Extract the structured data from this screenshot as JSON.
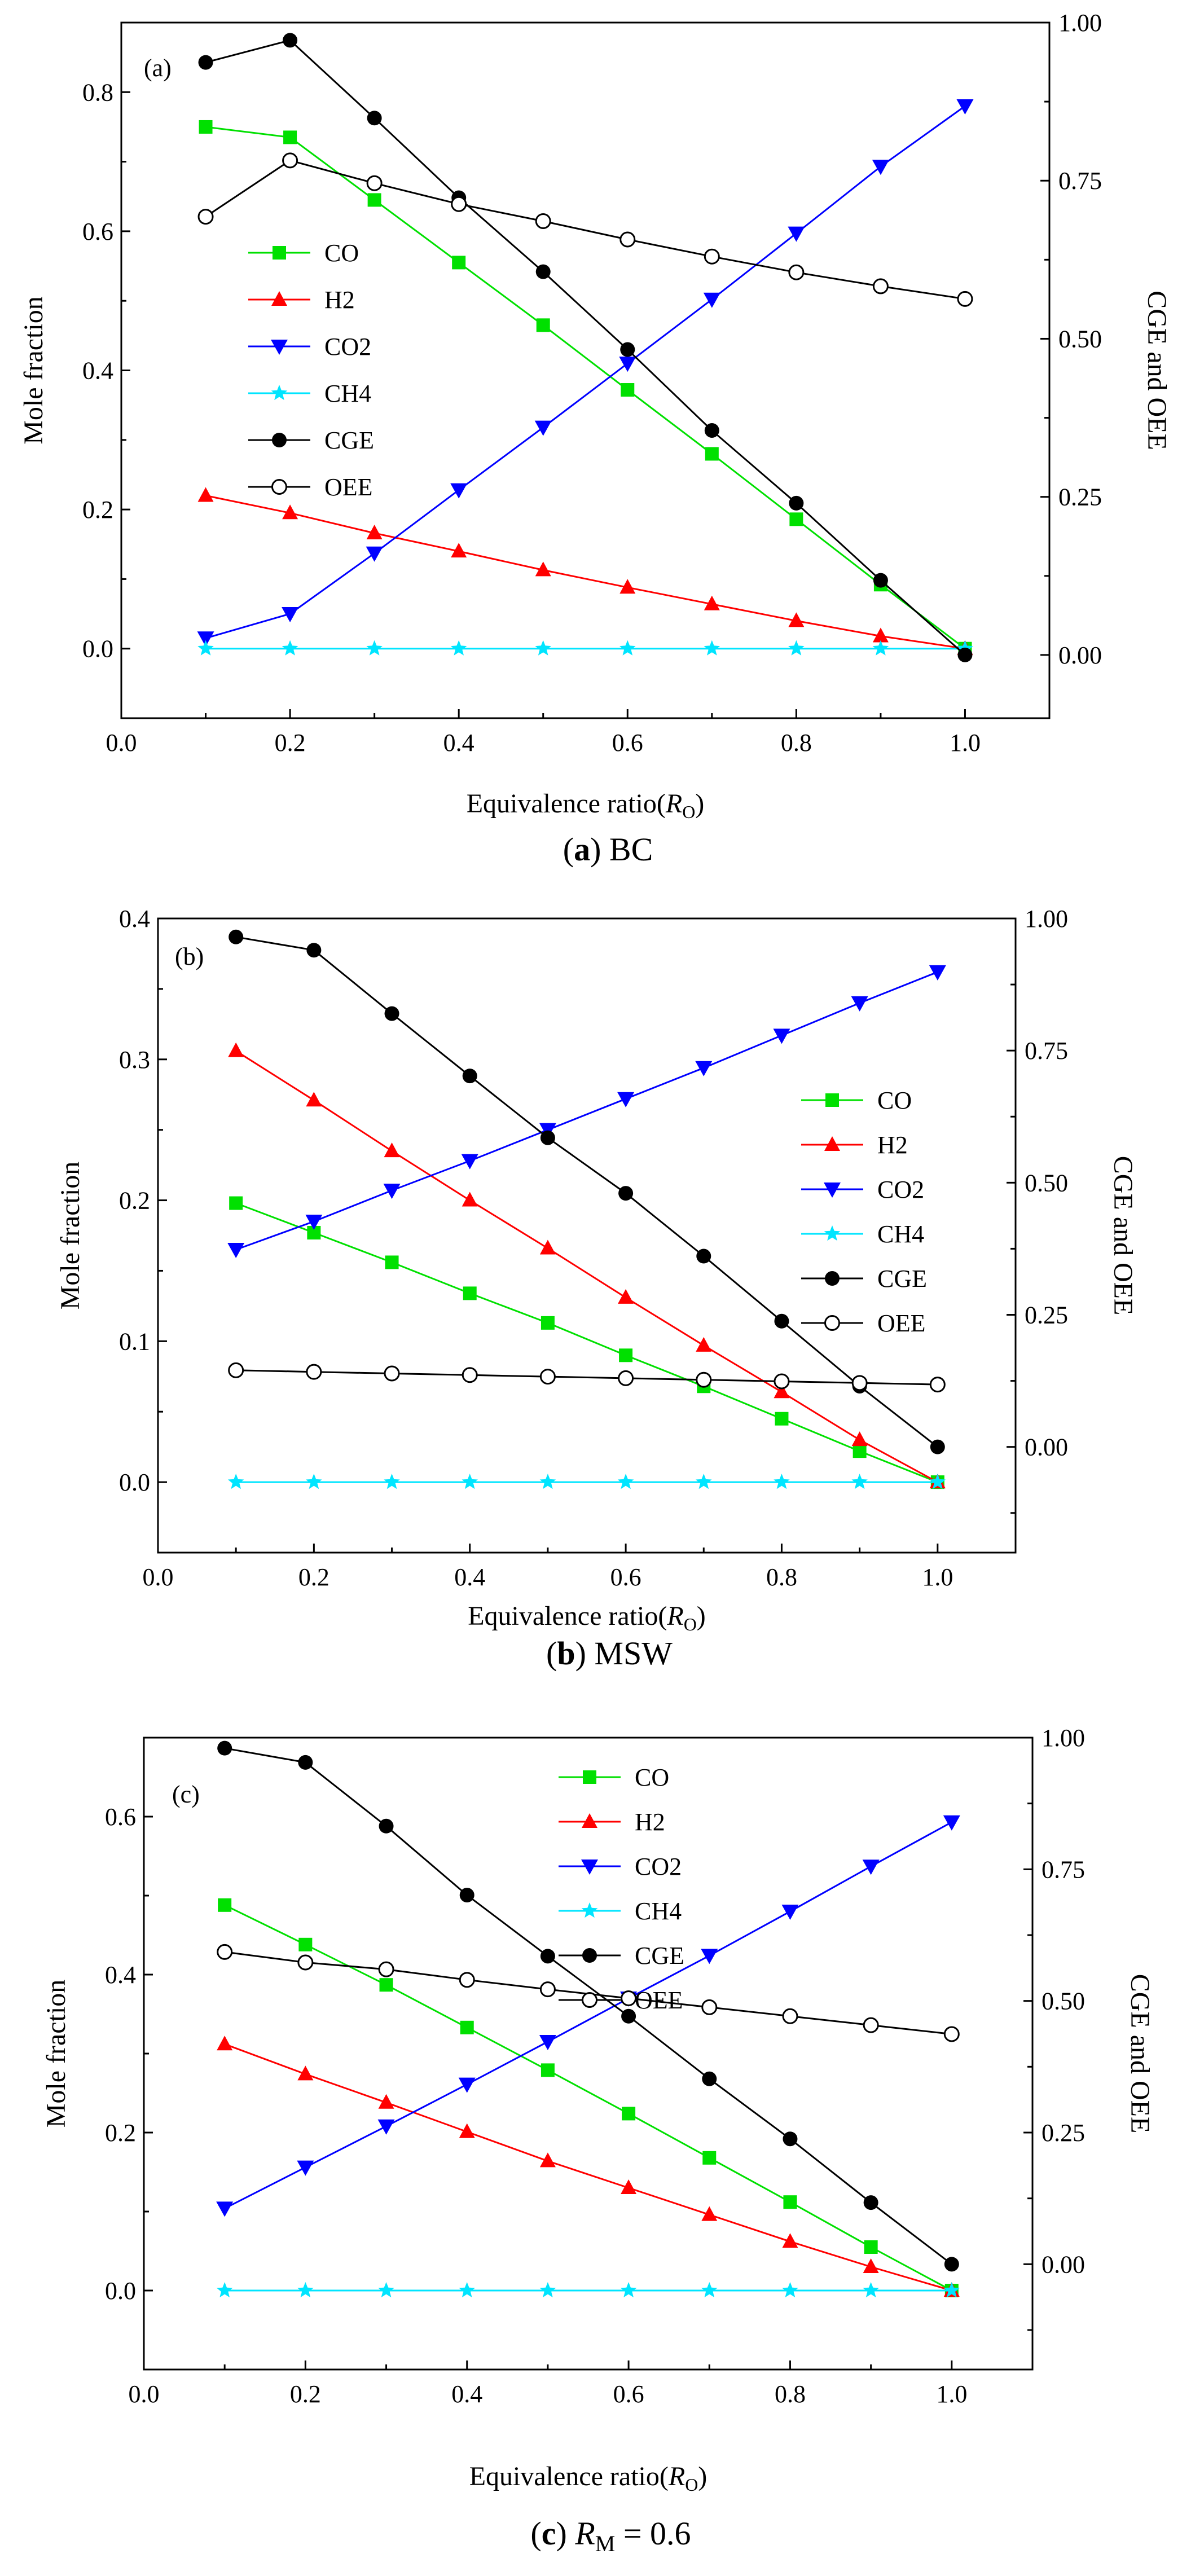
{
  "chart_data": [
    {
      "type": "line",
      "panel_label": "(a)",
      "caption": {
        "letter": "a",
        "text": "BC"
      },
      "xlabel": "Equivalence ratio(",
      "xlabel_var": "R",
      "xlabel_sub": "O",
      "ylabel": "Mole fraction",
      "y2label": "CGE and OEE",
      "xlim": [
        0.0,
        1.1
      ],
      "ylim": [
        -0.1,
        0.9
      ],
      "y2lim": [
        -0.1,
        1.0
      ],
      "xticks": [
        "0.0",
        "0.2",
        "0.4",
        "0.6",
        "0.8",
        "1.0"
      ],
      "yticks": [
        "0.0",
        "0.2",
        "0.4",
        "0.6",
        "0.8"
      ],
      "y2ticks": [
        "0.00",
        "0.25",
        "0.50",
        "0.75",
        "1.00"
      ],
      "legend_position": "middle-left",
      "x": [
        0.1,
        0.2,
        0.3,
        0.4,
        0.5,
        0.6,
        0.7,
        0.8,
        0.9,
        1.0
      ],
      "series": [
        {
          "name": "CO",
          "axis": "left",
          "color": "#00e000",
          "marker": "square-filled",
          "values": [
            0.75,
            0.735,
            0.645,
            0.555,
            0.465,
            0.372,
            0.28,
            0.186,
            0.092,
            0.0
          ]
        },
        {
          "name": "H2",
          "axis": "left",
          "color": "#ff0000",
          "marker": "triangle-up",
          "values": [
            0.22,
            0.195,
            0.166,
            0.14,
            0.113,
            0.088,
            0.064,
            0.04,
            0.018,
            0.0
          ]
        },
        {
          "name": "CO2",
          "axis": "left",
          "color": "#0000ff",
          "marker": "triangle-down",
          "values": [
            0.015,
            0.05,
            0.137,
            0.228,
            0.318,
            0.41,
            0.502,
            0.597,
            0.693,
            0.78
          ]
        },
        {
          "name": "CH4",
          "axis": "left",
          "color": "#00e5ff",
          "marker": "star",
          "values": [
            0.0,
            0.0,
            0.0,
            0.0,
            0.0,
            0.0,
            0.0,
            0.0,
            0.0,
            0.0
          ]
        },
        {
          "name": "CGE",
          "axis": "right",
          "color": "#000000",
          "marker": "circle-filled",
          "values": [
            0.937,
            0.972,
            0.849,
            0.723,
            0.606,
            0.483,
            0.355,
            0.24,
            0.118,
            0.0
          ]
        },
        {
          "name": "OEE",
          "axis": "right",
          "color": "#000000",
          "marker": "circle-open",
          "values": [
            0.693,
            0.782,
            0.746,
            0.713,
            0.686,
            0.657,
            0.63,
            0.605,
            0.583,
            0.563
          ]
        }
      ]
    },
    {
      "type": "line",
      "panel_label": "(b)",
      "caption": {
        "letter": "b",
        "text": "MSW"
      },
      "xlabel": "Equivalence ratio(",
      "xlabel_var": "R",
      "xlabel_sub": "O",
      "ylabel": "Mole fraction",
      "y2label": "CGE and OEE",
      "xlim": [
        0.0,
        1.1
      ],
      "ylim": [
        -0.05,
        0.4
      ],
      "y2lim": [
        -0.2,
        1.0
      ],
      "xticks": [
        "0.0",
        "0.2",
        "0.4",
        "0.6",
        "0.8",
        "1.0"
      ],
      "yticks": [
        "0.0",
        "0.1",
        "0.2",
        "0.3",
        "0.4"
      ],
      "y2ticks": [
        "0.00",
        "0.25",
        "0.50",
        "0.75",
        "1.00"
      ],
      "legend_position": "middle-right",
      "x": [
        0.1,
        0.2,
        0.3,
        0.4,
        0.5,
        0.6,
        0.7,
        0.8,
        0.9,
        1.0
      ],
      "series": [
        {
          "name": "CO",
          "axis": "left",
          "color": "#00e000",
          "marker": "square-filled",
          "values": [
            0.198,
            0.177,
            0.156,
            0.134,
            0.113,
            0.09,
            0.068,
            0.045,
            0.022,
            0.0
          ]
        },
        {
          "name": "H2",
          "axis": "left",
          "color": "#ff0000",
          "marker": "triangle-up",
          "values": [
            0.306,
            0.271,
            0.235,
            0.2,
            0.166,
            0.131,
            0.097,
            0.064,
            0.03,
            0.0
          ]
        },
        {
          "name": "CO2",
          "axis": "left",
          "color": "#0000ff",
          "marker": "triangle-down",
          "values": [
            0.165,
            0.185,
            0.207,
            0.228,
            0.25,
            0.272,
            0.294,
            0.317,
            0.34,
            0.362
          ]
        },
        {
          "name": "CH4",
          "axis": "left",
          "color": "#00e5ff",
          "marker": "star",
          "values": [
            0.0,
            0.0,
            0.0,
            0.0,
            0.0,
            0.0,
            0.0,
            0.0,
            0.0,
            0.0
          ]
        },
        {
          "name": "CGE",
          "axis": "right",
          "color": "#000000",
          "marker": "circle-filled",
          "values": [
            0.965,
            0.94,
            0.82,
            0.702,
            0.585,
            0.48,
            0.361,
            0.238,
            0.115,
            0.0
          ]
        },
        {
          "name": "OEE",
          "axis": "right",
          "color": "#000000",
          "marker": "circle-open",
          "values": [
            0.145,
            0.142,
            0.139,
            0.136,
            0.133,
            0.13,
            0.127,
            0.124,
            0.121,
            0.118
          ]
        }
      ]
    },
    {
      "type": "line",
      "panel_label": "(c)",
      "caption": {
        "letter": "c",
        "text_var": "R",
        "text_sub": "M",
        "text": " = 0.6"
      },
      "xlabel": "Equivalence ratio(",
      "xlabel_var": "R",
      "xlabel_sub": "O",
      "ylabel": "Mole fraction",
      "y2label": "CGE and OEE",
      "xlim": [
        0.0,
        1.1
      ],
      "ylim": [
        -0.1,
        0.7
      ],
      "y2lim": [
        -0.2,
        1.0
      ],
      "xticks": [
        "0.0",
        "0.2",
        "0.4",
        "0.6",
        "0.8",
        "1.0"
      ],
      "yticks": [
        "0.0",
        "0.2",
        "0.4",
        "0.6"
      ],
      "y2ticks": [
        "0.00",
        "0.25",
        "0.50",
        "0.75",
        "1.00"
      ],
      "legend_position": "top-center",
      "x": [
        0.1,
        0.2,
        0.3,
        0.4,
        0.5,
        0.6,
        0.7,
        0.8,
        0.9,
        1.0
      ],
      "series": [
        {
          "name": "CO",
          "axis": "left",
          "color": "#00e000",
          "marker": "square-filled",
          "values": [
            0.488,
            0.438,
            0.387,
            0.333,
            0.279,
            0.224,
            0.168,
            0.112,
            0.055,
            0.0
          ]
        },
        {
          "name": "H2",
          "axis": "left",
          "color": "#ff0000",
          "marker": "triangle-up",
          "values": [
            0.312,
            0.274,
            0.238,
            0.201,
            0.164,
            0.13,
            0.096,
            0.062,
            0.03,
            0.0
          ]
        },
        {
          "name": "CO2",
          "axis": "left",
          "color": "#0000ff",
          "marker": "triangle-down",
          "values": [
            0.104,
            0.156,
            0.208,
            0.261,
            0.315,
            0.37,
            0.424,
            0.48,
            0.537,
            0.593
          ]
        },
        {
          "name": "CH4",
          "axis": "left",
          "color": "#00e5ff",
          "marker": "star",
          "values": [
            0.0,
            0.0,
            0.0,
            0.0,
            0.0,
            0.0,
            0.0,
            0.0,
            0.0,
            0.0
          ]
        },
        {
          "name": "CGE",
          "axis": "right",
          "color": "#000000",
          "marker": "circle-filled",
          "values": [
            0.98,
            0.953,
            0.832,
            0.701,
            0.585,
            0.471,
            0.352,
            0.238,
            0.117,
            0.0
          ]
        },
        {
          "name": "OEE",
          "axis": "right",
          "color": "#000000",
          "marker": "circle-open",
          "values": [
            0.593,
            0.573,
            0.56,
            0.54,
            0.522,
            0.505,
            0.488,
            0.471,
            0.454,
            0.437
          ]
        }
      ]
    }
  ]
}
